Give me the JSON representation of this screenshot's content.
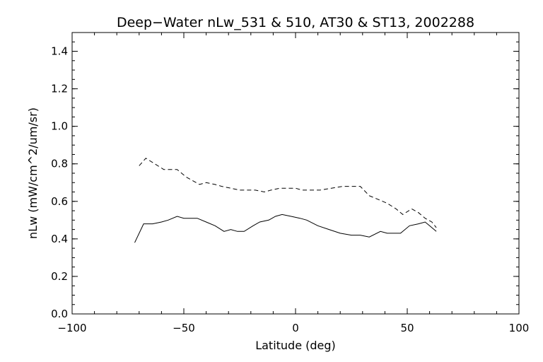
{
  "chart_data": {
    "type": "line",
    "title": "Deep−Water nLw_531 & 510, AT30 & ST13, 2002288",
    "xlabel": "Latitude (deg)",
    "ylabel": "nLw (mW/cm^2/um/sr)",
    "xlim": [
      -100,
      100
    ],
    "ylim": [
      0.0,
      1.5
    ],
    "xticks": [
      -100,
      -50,
      0,
      50,
      100
    ],
    "xtick_labels": [
      "−100",
      "−50",
      "0",
      "50",
      "100"
    ],
    "yticks": [
      0.0,
      0.2,
      0.4,
      0.6,
      0.8,
      1.0,
      1.2,
      1.4
    ],
    "ytick_labels": [
      "0.0",
      "0.2",
      "0.4",
      "0.6",
      "0.8",
      "1.0",
      "1.2",
      "1.4"
    ],
    "x_minor_step": 10,
    "y_minor_step": 0.05,
    "grid": false,
    "series": [
      {
        "style": "solid",
        "color": "#000000",
        "x": [
          -72,
          -68,
          -64,
          -60,
          -57,
          -53,
          -50,
          -44,
          -40,
          -36,
          -32,
          -29,
          -26,
          -23,
          -19,
          -16,
          -12,
          -9,
          -6,
          -2,
          2,
          5,
          10,
          15,
          20,
          25,
          29,
          33,
          38,
          41,
          44,
          47,
          51,
          55,
          58,
          60,
          63
        ],
        "y": [
          0.38,
          0.48,
          0.48,
          0.49,
          0.5,
          0.52,
          0.51,
          0.51,
          0.49,
          0.47,
          0.44,
          0.45,
          0.44,
          0.44,
          0.47,
          0.49,
          0.5,
          0.52,
          0.53,
          0.52,
          0.51,
          0.5,
          0.47,
          0.45,
          0.43,
          0.42,
          0.42,
          0.41,
          0.44,
          0.43,
          0.43,
          0.43,
          0.47,
          0.48,
          0.49,
          0.47,
          0.44
        ]
      },
      {
        "style": "dashed",
        "color": "#000000",
        "x": [
          -70,
          -67,
          -63,
          -59,
          -53,
          -49,
          -43,
          -40,
          -36,
          -33,
          -29,
          -25,
          -21,
          -18,
          -14,
          -11,
          -7,
          -4,
          0,
          3,
          7,
          11,
          16,
          21,
          25,
          29,
          33,
          37,
          41,
          45,
          48,
          52,
          55,
          58,
          61,
          63
        ],
        "y": [
          0.79,
          0.83,
          0.8,
          0.77,
          0.77,
          0.73,
          0.69,
          0.7,
          0.69,
          0.68,
          0.67,
          0.66,
          0.66,
          0.66,
          0.65,
          0.66,
          0.67,
          0.67,
          0.67,
          0.66,
          0.66,
          0.66,
          0.67,
          0.68,
          0.68,
          0.68,
          0.63,
          0.61,
          0.59,
          0.56,
          0.53,
          0.56,
          0.54,
          0.51,
          0.49,
          0.46
        ]
      }
    ]
  }
}
